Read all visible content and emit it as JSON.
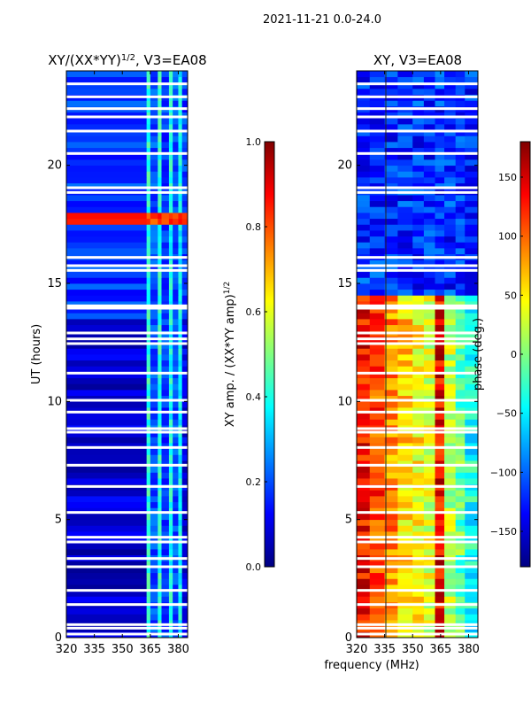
{
  "suptitle": "2021-11-21 0.0-24.0",
  "xlabel": "frequency (MHz)",
  "colors": {
    "jet": [
      "#000080",
      "#0000ff",
      "#0080ff",
      "#00ffff",
      "#80ff80",
      "#ffff00",
      "#ff8000",
      "#ff0000",
      "#800000"
    ]
  },
  "chart_data": [
    {
      "type": "heatmap",
      "title_main": "XY/(XX*YY)",
      "title_sup": "1/2",
      "title_rest": ", V3=EA08",
      "xlabel": "",
      "ylabel": "UT (hours)",
      "xlim": [
        320,
        385
      ],
      "ylim": [
        0,
        24
      ],
      "xticks": [
        "320",
        "335",
        "350",
        "365",
        "380"
      ],
      "xtick_values": [
        320,
        335,
        350,
        365,
        380
      ],
      "yticks": [
        "0",
        "5",
        "10",
        "15",
        "20"
      ],
      "ytick_values": [
        0,
        5,
        10,
        15,
        20
      ],
      "colorbar": {
        "label_main": "XY amp. / (XX*YY amp)",
        "label_sup": "1/2",
        "range": [
          0.0,
          1.0
        ],
        "ticks": [
          "0.0",
          "0.2",
          "0.4",
          "0.6",
          "0.8",
          "1.0"
        ],
        "tick_values": [
          0.0,
          0.2,
          0.4,
          0.6,
          0.8,
          1.0
        ]
      },
      "bands": [
        {
          "x0": 320,
          "x1": 363,
          "value": 0.08
        },
        {
          "x0": 363,
          "x1": 365,
          "value": 0.42
        },
        {
          "x0": 365,
          "x1": 369,
          "value": 0.2
        },
        {
          "x0": 369,
          "x1": 371,
          "value": 0.42
        },
        {
          "x0": 371,
          "x1": 375,
          "value": 0.18
        },
        {
          "x0": 375,
          "x1": 377,
          "value": 0.4
        },
        {
          "x0": 377,
          "x1": 380,
          "value": 0.2
        },
        {
          "x0": 380,
          "x1": 382,
          "value": 0.38
        },
        {
          "x0": 382,
          "x1": 385,
          "value": 0.1
        }
      ],
      "regions": [
        {
          "y0": 13.5,
          "y1": 24,
          "value": 0.18
        },
        {
          "y0": 17.6,
          "y1": 18.1,
          "value": 0.82
        }
      ]
    },
    {
      "type": "heatmap",
      "title_main": "XY, V3=EA08",
      "xlabel": "frequency (MHz)",
      "ylabel": "",
      "xlim": [
        320,
        385
      ],
      "ylim": [
        0,
        24
      ],
      "xticks": [
        "320",
        "335",
        "350",
        "365",
        "380"
      ],
      "xtick_values": [
        320,
        335,
        350,
        365,
        380
      ],
      "yticks": [
        "0",
        "5",
        "10",
        "15",
        "20"
      ],
      "ytick_values": [
        0,
        5,
        10,
        15,
        20
      ],
      "colorbar": {
        "label": "phase (deg.)",
        "range": [
          -180,
          180
        ],
        "ticks": [
          "−150",
          "−100",
          "−50",
          "0",
          "50",
          "100",
          "150"
        ],
        "tick_values": [
          -150,
          -100,
          -50,
          0,
          50,
          100,
          150
        ]
      },
      "bands": [
        {
          "x0": 320,
          "x1": 327,
          "value": 135
        },
        {
          "x0": 327,
          "x1": 335,
          "value": 110
        },
        {
          "x0": 335,
          "x1": 342,
          "value": 85
        },
        {
          "x0": 342,
          "x1": 350,
          "value": 60
        },
        {
          "x0": 350,
          "x1": 356,
          "value": 48
        },
        {
          "x0": 356,
          "x1": 362,
          "value": 30
        },
        {
          "x0": 362,
          "x1": 367,
          "value": 140
        },
        {
          "x0": 367,
          "x1": 373,
          "value": 20
        },
        {
          "x0": 373,
          "x1": 378,
          "value": -10
        },
        {
          "x0": 378,
          "x1": 385,
          "value": -40
        }
      ],
      "regions": [
        {
          "y0": 14.5,
          "y1": 24,
          "value": -120
        }
      ]
    }
  ]
}
